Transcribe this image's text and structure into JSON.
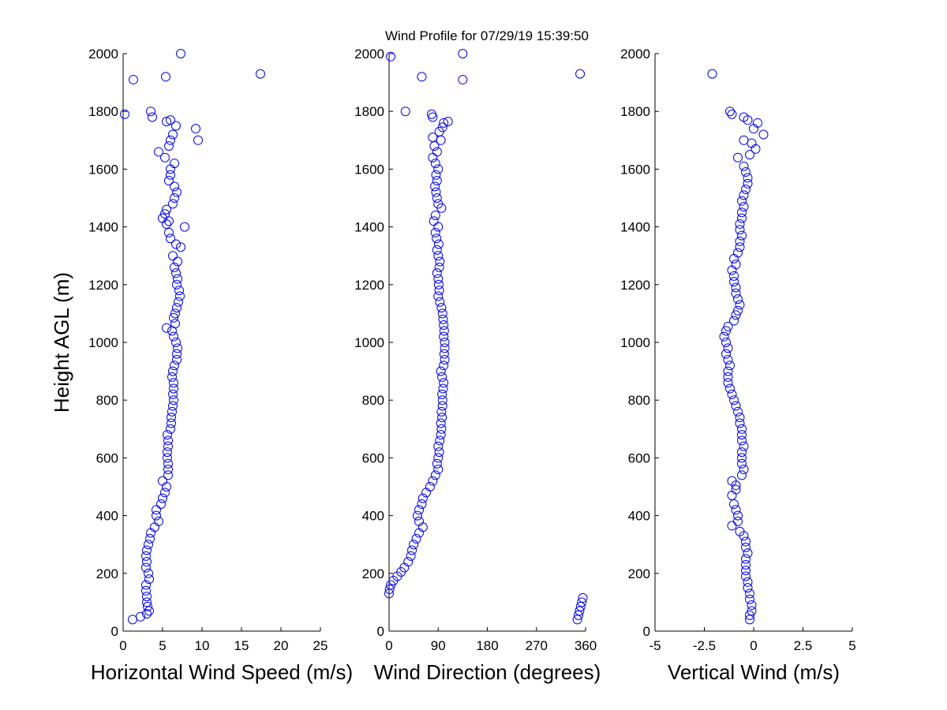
{
  "title": "Wind Profile for  07/29/19 15:39:50",
  "colors": {
    "marker": "#0000ff",
    "axis": "#000000",
    "background": "#ffffff"
  },
  "chart_data": [
    {
      "type": "scatter",
      "xlabel": "Horizontal Wind Speed (m/s)",
      "ylabel": "Height AGL (m)",
      "xlim": [
        0,
        25
      ],
      "ylim": [
        0,
        2000
      ],
      "xticks": [
        "0",
        "5",
        "10",
        "15",
        "20",
        "25"
      ],
      "yticks": [
        "0",
        "200",
        "400",
        "600",
        "800",
        "1000",
        "1200",
        "1400",
        "1600",
        "1800",
        "2000"
      ],
      "grid": false,
      "points": [
        [
          1.2,
          40
        ],
        [
          2.2,
          50
        ],
        [
          3.0,
          60
        ],
        [
          3.3,
          70
        ],
        [
          3.1,
          85
        ],
        [
          3.0,
          100
        ],
        [
          3.0,
          120
        ],
        [
          2.9,
          140
        ],
        [
          2.9,
          160
        ],
        [
          3.3,
          180
        ],
        [
          3.2,
          200
        ],
        [
          2.9,
          220
        ],
        [
          3.0,
          240
        ],
        [
          2.9,
          260
        ],
        [
          3.0,
          280
        ],
        [
          3.2,
          300
        ],
        [
          3.4,
          320
        ],
        [
          3.5,
          340
        ],
        [
          4.0,
          360
        ],
        [
          4.5,
          380
        ],
        [
          4.2,
          400
        ],
        [
          4.2,
          420
        ],
        [
          4.8,
          440
        ],
        [
          5.0,
          460
        ],
        [
          5.3,
          480
        ],
        [
          5.5,
          500
        ],
        [
          5.0,
          520
        ],
        [
          5.7,
          540
        ],
        [
          5.7,
          560
        ],
        [
          5.7,
          580
        ],
        [
          5.6,
          600
        ],
        [
          5.6,
          620
        ],
        [
          5.7,
          640
        ],
        [
          5.7,
          660
        ],
        [
          5.6,
          680
        ],
        [
          6.0,
          700
        ],
        [
          6.1,
          720
        ],
        [
          6.1,
          740
        ],
        [
          6.2,
          760
        ],
        [
          6.3,
          780
        ],
        [
          6.4,
          800
        ],
        [
          6.3,
          820
        ],
        [
          6.4,
          840
        ],
        [
          6.4,
          860
        ],
        [
          6.2,
          880
        ],
        [
          6.3,
          900
        ],
        [
          6.5,
          920
        ],
        [
          6.8,
          940
        ],
        [
          6.8,
          960
        ],
        [
          6.9,
          980
        ],
        [
          6.7,
          1000
        ],
        [
          6.4,
          1020
        ],
        [
          6.2,
          1040
        ],
        [
          5.5,
          1050
        ],
        [
          6.6,
          1065
        ],
        [
          6.4,
          1085
        ],
        [
          6.6,
          1100
        ],
        [
          6.8,
          1120
        ],
        [
          7.0,
          1140
        ],
        [
          7.2,
          1160
        ],
        [
          7.1,
          1180
        ],
        [
          6.8,
          1200
        ],
        [
          6.9,
          1220
        ],
        [
          6.7,
          1240
        ],
        [
          6.5,
          1260
        ],
        [
          6.9,
          1280
        ],
        [
          6.3,
          1300
        ],
        [
          7.3,
          1330
        ],
        [
          6.7,
          1340
        ],
        [
          6.0,
          1360
        ],
        [
          5.8,
          1380
        ],
        [
          7.8,
          1400
        ],
        [
          5.5,
          1410
        ],
        [
          5.8,
          1420
        ],
        [
          5.0,
          1430
        ],
        [
          5.3,
          1445
        ],
        [
          5.5,
          1460
        ],
        [
          6.3,
          1480
        ],
        [
          6.5,
          1500
        ],
        [
          6.8,
          1520
        ],
        [
          6.5,
          1540
        ],
        [
          5.8,
          1560
        ],
        [
          6.0,
          1580
        ],
        [
          6.0,
          1600
        ],
        [
          6.5,
          1620
        ],
        [
          5.3,
          1640
        ],
        [
          4.5,
          1660
        ],
        [
          5.8,
          1680
        ],
        [
          6.0,
          1700
        ],
        [
          9.5,
          1700
        ],
        [
          6.3,
          1720
        ],
        [
          9.2,
          1740
        ],
        [
          6.7,
          1750
        ],
        [
          5.5,
          1765
        ],
        [
          6.0,
          1770
        ],
        [
          3.7,
          1780
        ],
        [
          0.2,
          1790
        ],
        [
          3.5,
          1800
        ],
        [
          1.3,
          1910
        ],
        [
          5.4,
          1920
        ],
        [
          17.4,
          1930
        ],
        [
          7.3,
          2000
        ]
      ]
    },
    {
      "type": "scatter",
      "xlabel": "Wind Direction (degrees)",
      "xlim": [
        0,
        360
      ],
      "ylim": [
        0,
        2000
      ],
      "xticks": [
        "0",
        "90",
        "180",
        "270",
        "360"
      ],
      "yticks": [
        "0",
        "200",
        "400",
        "600",
        "800",
        "1000",
        "1200",
        "1400",
        "1600",
        "1800",
        "2000"
      ],
      "grid": false,
      "points": [
        [
          345,
          40
        ],
        [
          347,
          55
        ],
        [
          349,
          70
        ],
        [
          351,
          85
        ],
        [
          353,
          100
        ],
        [
          355,
          115
        ],
        [
          0,
          130
        ],
        [
          1,
          145
        ],
        [
          3,
          160
        ],
        [
          8,
          175
        ],
        [
          15,
          190
        ],
        [
          22,
          205
        ],
        [
          28,
          220
        ],
        [
          35,
          240
        ],
        [
          40,
          260
        ],
        [
          42,
          280
        ],
        [
          45,
          300
        ],
        [
          50,
          320
        ],
        [
          55,
          340
        ],
        [
          62,
          360
        ],
        [
          55,
          380
        ],
        [
          52,
          400
        ],
        [
          55,
          420
        ],
        [
          60,
          440
        ],
        [
          62,
          460
        ],
        [
          68,
          480
        ],
        [
          75,
          500
        ],
        [
          80,
          520
        ],
        [
          85,
          540
        ],
        [
          90,
          560
        ],
        [
          88,
          580
        ],
        [
          90,
          600
        ],
        [
          92,
          620
        ],
        [
          90,
          640
        ],
        [
          93,
          660
        ],
        [
          95,
          680
        ],
        [
          96,
          700
        ],
        [
          95,
          720
        ],
        [
          97,
          740
        ],
        [
          96,
          760
        ],
        [
          98,
          780
        ],
        [
          98,
          800
        ],
        [
          97,
          820
        ],
        [
          99,
          840
        ],
        [
          100,
          860
        ],
        [
          97,
          880
        ],
        [
          95,
          900
        ],
        [
          100,
          920
        ],
        [
          102,
          940
        ],
        [
          101,
          960
        ],
        [
          102,
          980
        ],
        [
          102,
          1000
        ],
        [
          100,
          1020
        ],
        [
          101,
          1040
        ],
        [
          100,
          1060
        ],
        [
          99,
          1080
        ],
        [
          98,
          1100
        ],
        [
          96,
          1120
        ],
        [
          93,
          1140
        ],
        [
          90,
          1160
        ],
        [
          92,
          1180
        ],
        [
          91,
          1200
        ],
        [
          90,
          1220
        ],
        [
          88,
          1240
        ],
        [
          92,
          1260
        ],
        [
          93,
          1280
        ],
        [
          90,
          1300
        ],
        [
          88,
          1320
        ],
        [
          91,
          1340
        ],
        [
          87,
          1360
        ],
        [
          85,
          1380
        ],
        [
          90,
          1400
        ],
        [
          82,
          1420
        ],
        [
          85,
          1440
        ],
        [
          96,
          1465
        ],
        [
          90,
          1480
        ],
        [
          88,
          1500
        ],
        [
          86,
          1520
        ],
        [
          84,
          1540
        ],
        [
          88,
          1560
        ],
        [
          86,
          1580
        ],
        [
          90,
          1600
        ],
        [
          85,
          1620
        ],
        [
          80,
          1640
        ],
        [
          88,
          1660
        ],
        [
          83,
          1680
        ],
        [
          95,
          1700
        ],
        [
          80,
          1710
        ],
        [
          92,
          1730
        ],
        [
          98,
          1745
        ],
        [
          100,
          1760
        ],
        [
          108,
          1765
        ],
        [
          80,
          1780
        ],
        [
          78,
          1790
        ],
        [
          30,
          1800
        ],
        [
          135,
          1910
        ],
        [
          60,
          1920
        ],
        [
          350,
          1930
        ],
        [
          3,
          1990
        ],
        [
          135,
          2000
        ]
      ]
    },
    {
      "type": "scatter",
      "xlabel": "Vertical Wind (m/s)",
      "xlim": [
        -5,
        5
      ],
      "ylim": [
        0,
        2000
      ],
      "xticks": [
        "-5",
        "-2.5",
        "0",
        "2.5",
        "5"
      ],
      "yticks": [
        "0",
        "200",
        "400",
        "600",
        "800",
        "1000",
        "1200",
        "1400",
        "1600",
        "1800",
        "2000"
      ],
      "grid": false,
      "points": [
        [
          -0.2,
          40
        ],
        [
          -0.2,
          55
        ],
        [
          -0.1,
          70
        ],
        [
          -0.1,
          90
        ],
        [
          -0.2,
          110
        ],
        [
          -0.2,
          130
        ],
        [
          -0.3,
          150
        ],
        [
          -0.3,
          170
        ],
        [
          -0.4,
          190
        ],
        [
          -0.4,
          210
        ],
        [
          -0.4,
          230
        ],
        [
          -0.4,
          250
        ],
        [
          -0.3,
          270
        ],
        [
          -0.4,
          290
        ],
        [
          -0.4,
          310
        ],
        [
          -0.5,
          330
        ],
        [
          -0.7,
          345
        ],
        [
          -1.1,
          365
        ],
        [
          -0.8,
          380
        ],
        [
          -0.8,
          400
        ],
        [
          -0.9,
          420
        ],
        [
          -1.0,
          440
        ],
        [
          -1.1,
          470
        ],
        [
          -0.9,
          490
        ],
        [
          -0.9,
          505
        ],
        [
          -1.1,
          520
        ],
        [
          -0.6,
          540
        ],
        [
          -0.5,
          560
        ],
        [
          -0.6,
          580
        ],
        [
          -0.6,
          600
        ],
        [
          -0.6,
          620
        ],
        [
          -0.5,
          640
        ],
        [
          -0.6,
          660
        ],
        [
          -0.6,
          680
        ],
        [
          -0.6,
          700
        ],
        [
          -0.7,
          720
        ],
        [
          -0.7,
          740
        ],
        [
          -0.8,
          760
        ],
        [
          -0.9,
          780
        ],
        [
          -1.0,
          800
        ],
        [
          -1.1,
          820
        ],
        [
          -1.2,
          840
        ],
        [
          -1.3,
          860
        ],
        [
          -1.3,
          880
        ],
        [
          -1.3,
          900
        ],
        [
          -1.2,
          920
        ],
        [
          -1.3,
          940
        ],
        [
          -1.4,
          960
        ],
        [
          -1.3,
          980
        ],
        [
          -1.4,
          1000
        ],
        [
          -1.5,
          1020
        ],
        [
          -1.4,
          1040
        ],
        [
          -1.3,
          1055
        ],
        [
          -1.0,
          1075
        ],
        [
          -0.9,
          1095
        ],
        [
          -0.8,
          1110
        ],
        [
          -0.7,
          1130
        ],
        [
          -0.8,
          1150
        ],
        [
          -0.9,
          1170
        ],
        [
          -0.9,
          1190
        ],
        [
          -1.0,
          1210
        ],
        [
          -1.0,
          1230
        ],
        [
          -1.1,
          1250
        ],
        [
          -0.9,
          1270
        ],
        [
          -1.0,
          1290
        ],
        [
          -0.8,
          1310
        ],
        [
          -0.7,
          1330
        ],
        [
          -0.7,
          1350
        ],
        [
          -0.6,
          1370
        ],
        [
          -0.7,
          1390
        ],
        [
          -0.7,
          1410
        ],
        [
          -0.6,
          1430
        ],
        [
          -0.6,
          1450
        ],
        [
          -0.5,
          1470
        ],
        [
          -0.6,
          1490
        ],
        [
          -0.5,
          1510
        ],
        [
          -0.4,
          1530
        ],
        [
          -0.3,
          1550
        ],
        [
          -0.3,
          1570
        ],
        [
          -0.4,
          1590
        ],
        [
          -0.5,
          1610
        ],
        [
          -0.8,
          1640
        ],
        [
          -0.2,
          1650
        ],
        [
          0.1,
          1670
        ],
        [
          -0.1,
          1690
        ],
        [
          -0.5,
          1700
        ],
        [
          0.5,
          1720
        ],
        [
          0.0,
          1740
        ],
        [
          0.2,
          1760
        ],
        [
          -0.3,
          1770
        ],
        [
          -0.5,
          1780
        ],
        [
          -1.1,
          1790
        ],
        [
          -1.2,
          1800
        ],
        [
          -2.1,
          1930
        ]
      ]
    }
  ]
}
